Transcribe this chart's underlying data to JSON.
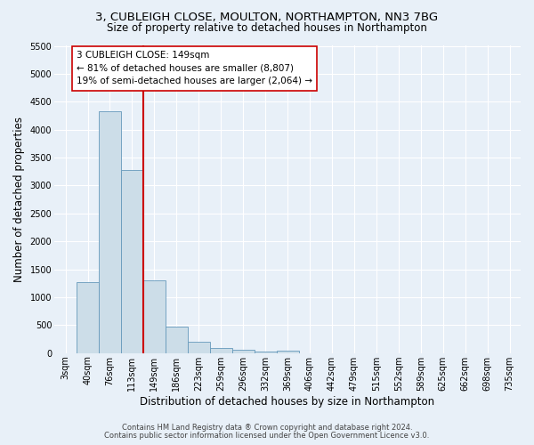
{
  "title1": "3, CUBLEIGH CLOSE, MOULTON, NORTHAMPTON, NN3 7BG",
  "title2": "Size of property relative to detached houses in Northampton",
  "xlabel": "Distribution of detached houses by size in Northampton",
  "ylabel": "Number of detached properties",
  "footnote1": "Contains HM Land Registry data ® Crown copyright and database right 2024.",
  "footnote2": "Contains public sector information licensed under the Open Government Licence v3.0.",
  "bin_labels": [
    "3sqm",
    "40sqm",
    "76sqm",
    "113sqm",
    "149sqm",
    "186sqm",
    "223sqm",
    "259sqm",
    "296sqm",
    "332sqm",
    "369sqm",
    "406sqm",
    "442sqm",
    "479sqm",
    "515sqm",
    "552sqm",
    "589sqm",
    "625sqm",
    "662sqm",
    "698sqm",
    "735sqm"
  ],
  "bar_heights": [
    0,
    1270,
    4330,
    3280,
    1295,
    480,
    200,
    85,
    65,
    30,
    40,
    0,
    0,
    0,
    0,
    0,
    0,
    0,
    0,
    0,
    0
  ],
  "bar_color": "#ccdde8",
  "bar_edge_color": "#6699bb",
  "property_line_bin_index": 4,
  "property_line_color": "#cc0000",
  "annotation_text": "3 CUBLEIGH CLOSE: 149sqm\n← 81% of detached houses are smaller (8,807)\n19% of semi-detached houses are larger (2,064) →",
  "annotation_box_facecolor": "#ffffff",
  "annotation_box_edgecolor": "#cc0000",
  "ylim": [
    0,
    5500
  ],
  "yticks": [
    0,
    500,
    1000,
    1500,
    2000,
    2500,
    3000,
    3500,
    4000,
    4500,
    5000,
    5500
  ],
  "background_color": "#e8f0f8",
  "grid_color": "#ffffff",
  "title_fontsize": 9.5,
  "subtitle_fontsize": 8.5,
  "axis_label_fontsize": 8.5,
  "tick_fontsize": 7,
  "footnote_fontsize": 6,
  "annotation_fontsize": 7.5
}
